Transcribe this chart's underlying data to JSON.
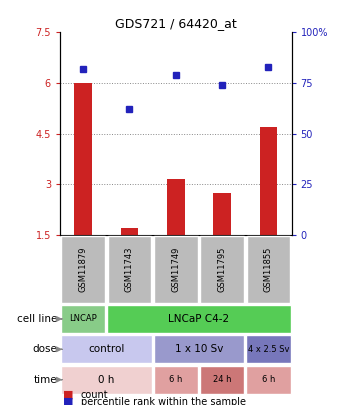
{
  "title": "GDS721 / 64420_at",
  "samples": [
    "GSM11879",
    "GSM11743",
    "GSM11749",
    "GSM11795",
    "GSM11855"
  ],
  "counts": [
    6.0,
    1.7,
    3.15,
    2.75,
    4.7
  ],
  "percentiles": [
    82,
    62,
    79,
    74,
    83
  ],
  "ylim_left": [
    1.5,
    7.5
  ],
  "ylim_right": [
    0,
    100
  ],
  "yticks_left": [
    1.5,
    3.0,
    4.5,
    6.0,
    7.5
  ],
  "yticks_right": [
    0,
    25,
    50,
    75,
    100
  ],
  "ytick_labels_left": [
    "1.5",
    "3",
    "4.5",
    "6",
    "7.5"
  ],
  "ytick_labels_right": [
    "0",
    "25",
    "50",
    "75",
    "100%"
  ],
  "bar_color": "#cc2222",
  "dot_color": "#2222bb",
  "grid_color": "#888888",
  "cell_line_data": [
    {
      "label": "LNCAP",
      "span": [
        0,
        1
      ],
      "color": "#88cc88"
    },
    {
      "label": "LNCaP C4-2",
      "span": [
        1,
        5
      ],
      "color": "#55cc55"
    }
  ],
  "dose_data": [
    {
      "label": "control",
      "span": [
        0,
        2
      ],
      "color": "#c8c8ee"
    },
    {
      "label": "1 x 10 Sv",
      "span": [
        2,
        4
      ],
      "color": "#9999cc"
    },
    {
      "label": "4 x 2.5 Sv",
      "span": [
        4,
        5
      ],
      "color": "#7777bb"
    }
  ],
  "time_data": [
    {
      "label": "0 h",
      "span": [
        0,
        2
      ],
      "color": "#f0d0d0"
    },
    {
      "label": "6 h",
      "span": [
        2,
        3
      ],
      "color": "#e0a0a0"
    },
    {
      "label": "24 h",
      "span": [
        3,
        4
      ],
      "color": "#cc7777"
    },
    {
      "label": "6 h",
      "span": [
        4,
        5
      ],
      "color": "#e0a0a0"
    }
  ],
  "row_labels": [
    "cell line",
    "dose",
    "time"
  ],
  "arrow_color": "#888888",
  "sample_bg_color": "#bbbbbb",
  "legend_red_label": "count",
  "legend_blue_label": "percentile rank within the sample",
  "right_ytick_labels": [
    "0",
    "25",
    "50",
    "75",
    "100%"
  ]
}
